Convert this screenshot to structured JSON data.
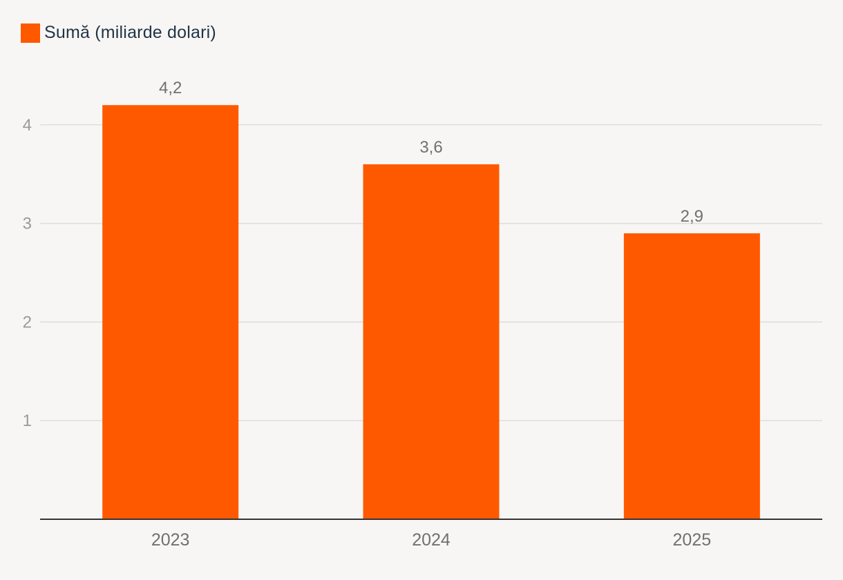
{
  "legend": {
    "label": "Sumă (miliarde dolari)",
    "color": "#ff5900"
  },
  "colors": {
    "bar": "#ff5900",
    "grid": "#dddddd",
    "axis": "#333333",
    "background": "#f8f6f4"
  },
  "chart_data": {
    "type": "bar",
    "title": "",
    "xlabel": "",
    "ylabel": "",
    "categories": [
      "2023",
      "2024",
      "2025"
    ],
    "series": [
      {
        "name": "Sumă (miliarde dolari)",
        "values": [
          4.2,
          3.6,
          2.9
        ],
        "labels": [
          "4,2",
          "3,6",
          "2,9"
        ]
      }
    ],
    "y_ticks": [
      1,
      2,
      3,
      4
    ],
    "ylim": [
      0,
      4.7
    ],
    "grid": true,
    "legend_position": "top-left"
  }
}
